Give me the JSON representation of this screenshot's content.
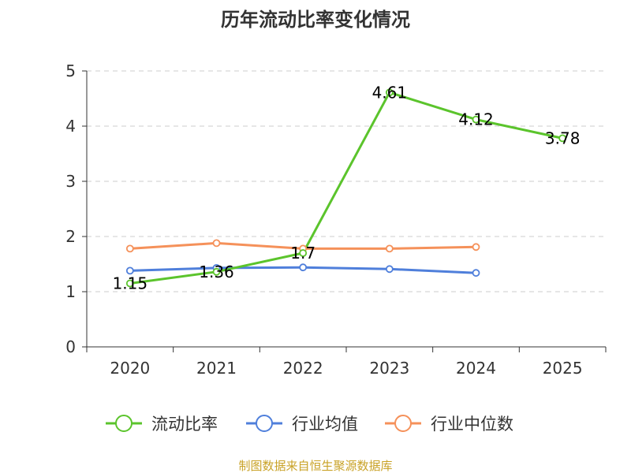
{
  "chart_data": {
    "type": "line",
    "title": "历年流动比率变化情况",
    "categories": [
      "2020",
      "2021",
      "2022",
      "2023",
      "2024",
      "2025"
    ],
    "ylim": [
      0,
      5
    ],
    "yticks": [
      "0",
      "1",
      "2",
      "3",
      "4",
      "5"
    ],
    "grid": true,
    "legend_position": "bottom",
    "series": [
      {
        "name": "流动比率",
        "color": "#5bc42c",
        "values": [
          1.15,
          1.36,
          1.7,
          4.61,
          4.12,
          3.78
        ],
        "labels": [
          "1.15",
          "1.36",
          "1.7",
          "4.61",
          "4.12",
          "3.78"
        ]
      },
      {
        "name": "行业均值",
        "color": "#4f7fdb",
        "values": [
          1.38,
          1.43,
          1.44,
          1.41,
          1.34,
          null
        ]
      },
      {
        "name": "行业中位数",
        "color": "#f5915a",
        "values": [
          1.78,
          1.88,
          1.78,
          1.78,
          1.81,
          null
        ]
      }
    ],
    "source_note": "制图数据来自恒生聚源数据库",
    "source_color": "#c9a227"
  }
}
